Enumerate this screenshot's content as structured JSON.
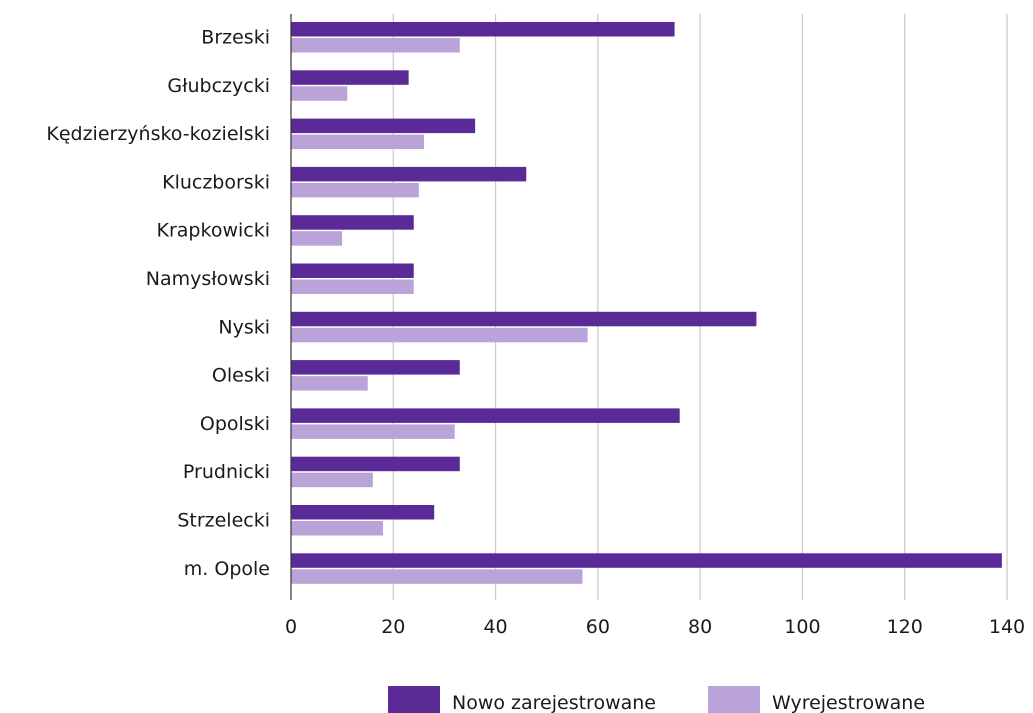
{
  "chart_data": {
    "type": "bar",
    "orientation": "horizontal",
    "categories": [
      "Brzeski",
      "Głubczycki",
      "Kędzierzyńsko-kozielski",
      "Kluczborski",
      "Krapkowicki",
      "Namysłowski",
      "Nyski",
      "Oleski",
      "Opolski",
      "Prudnicki",
      "Strzelecki",
      "m. Opole"
    ],
    "series": [
      {
        "name": "Nowo zarejestrowane",
        "color": "#5a2a96",
        "values": [
          75,
          23,
          36,
          46,
          24,
          24,
          91,
          33,
          76,
          33,
          28,
          139
        ]
      },
      {
        "name": "Wyrejestrowane",
        "color": "#b9a3d8",
        "values": [
          33,
          11,
          26,
          25,
          10,
          24,
          58,
          15,
          32,
          16,
          18,
          57
        ]
      }
    ],
    "xlim": [
      0,
      140
    ],
    "xticks": [
      "0",
      "20",
      "40",
      "60",
      "80",
      "100",
      "120",
      "140"
    ],
    "grid": true,
    "legend_position": "bottom-right"
  }
}
